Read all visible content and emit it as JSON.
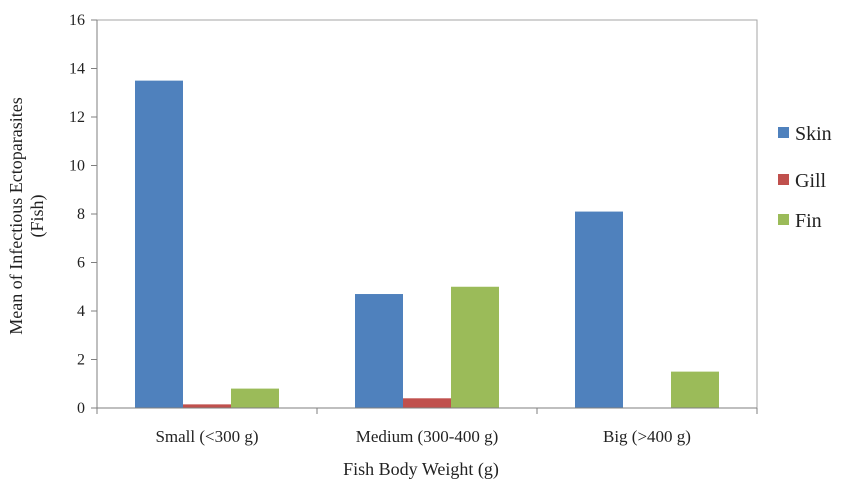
{
  "chart_data": {
    "type": "bar",
    "title": "",
    "xlabel": "Fish Body Weight (g)",
    "ylabel": [
      "Mean of Infectious Ectoparasites",
      "(Fish)"
    ],
    "categories": [
      "Small (<300 g)",
      "Medium (300-400 g)",
      "Big (>400 g)"
    ],
    "ylim": [
      0,
      16
    ],
    "yticks": [
      "0",
      "2",
      "4",
      "6",
      "8",
      "10",
      "12",
      "14",
      "16"
    ],
    "grid": false,
    "legend_position": "right",
    "series": [
      {
        "name": "Skin",
        "color": "#4f81bd",
        "values": [
          13.5,
          4.7,
          8.1
        ]
      },
      {
        "name": "Gill",
        "color": "#c0504d",
        "values": [
          0.15,
          0.4,
          0
        ]
      },
      {
        "name": "Fin",
        "color": "#9bbb59",
        "values": [
          0.8,
          5.0,
          1.5
        ]
      }
    ]
  }
}
